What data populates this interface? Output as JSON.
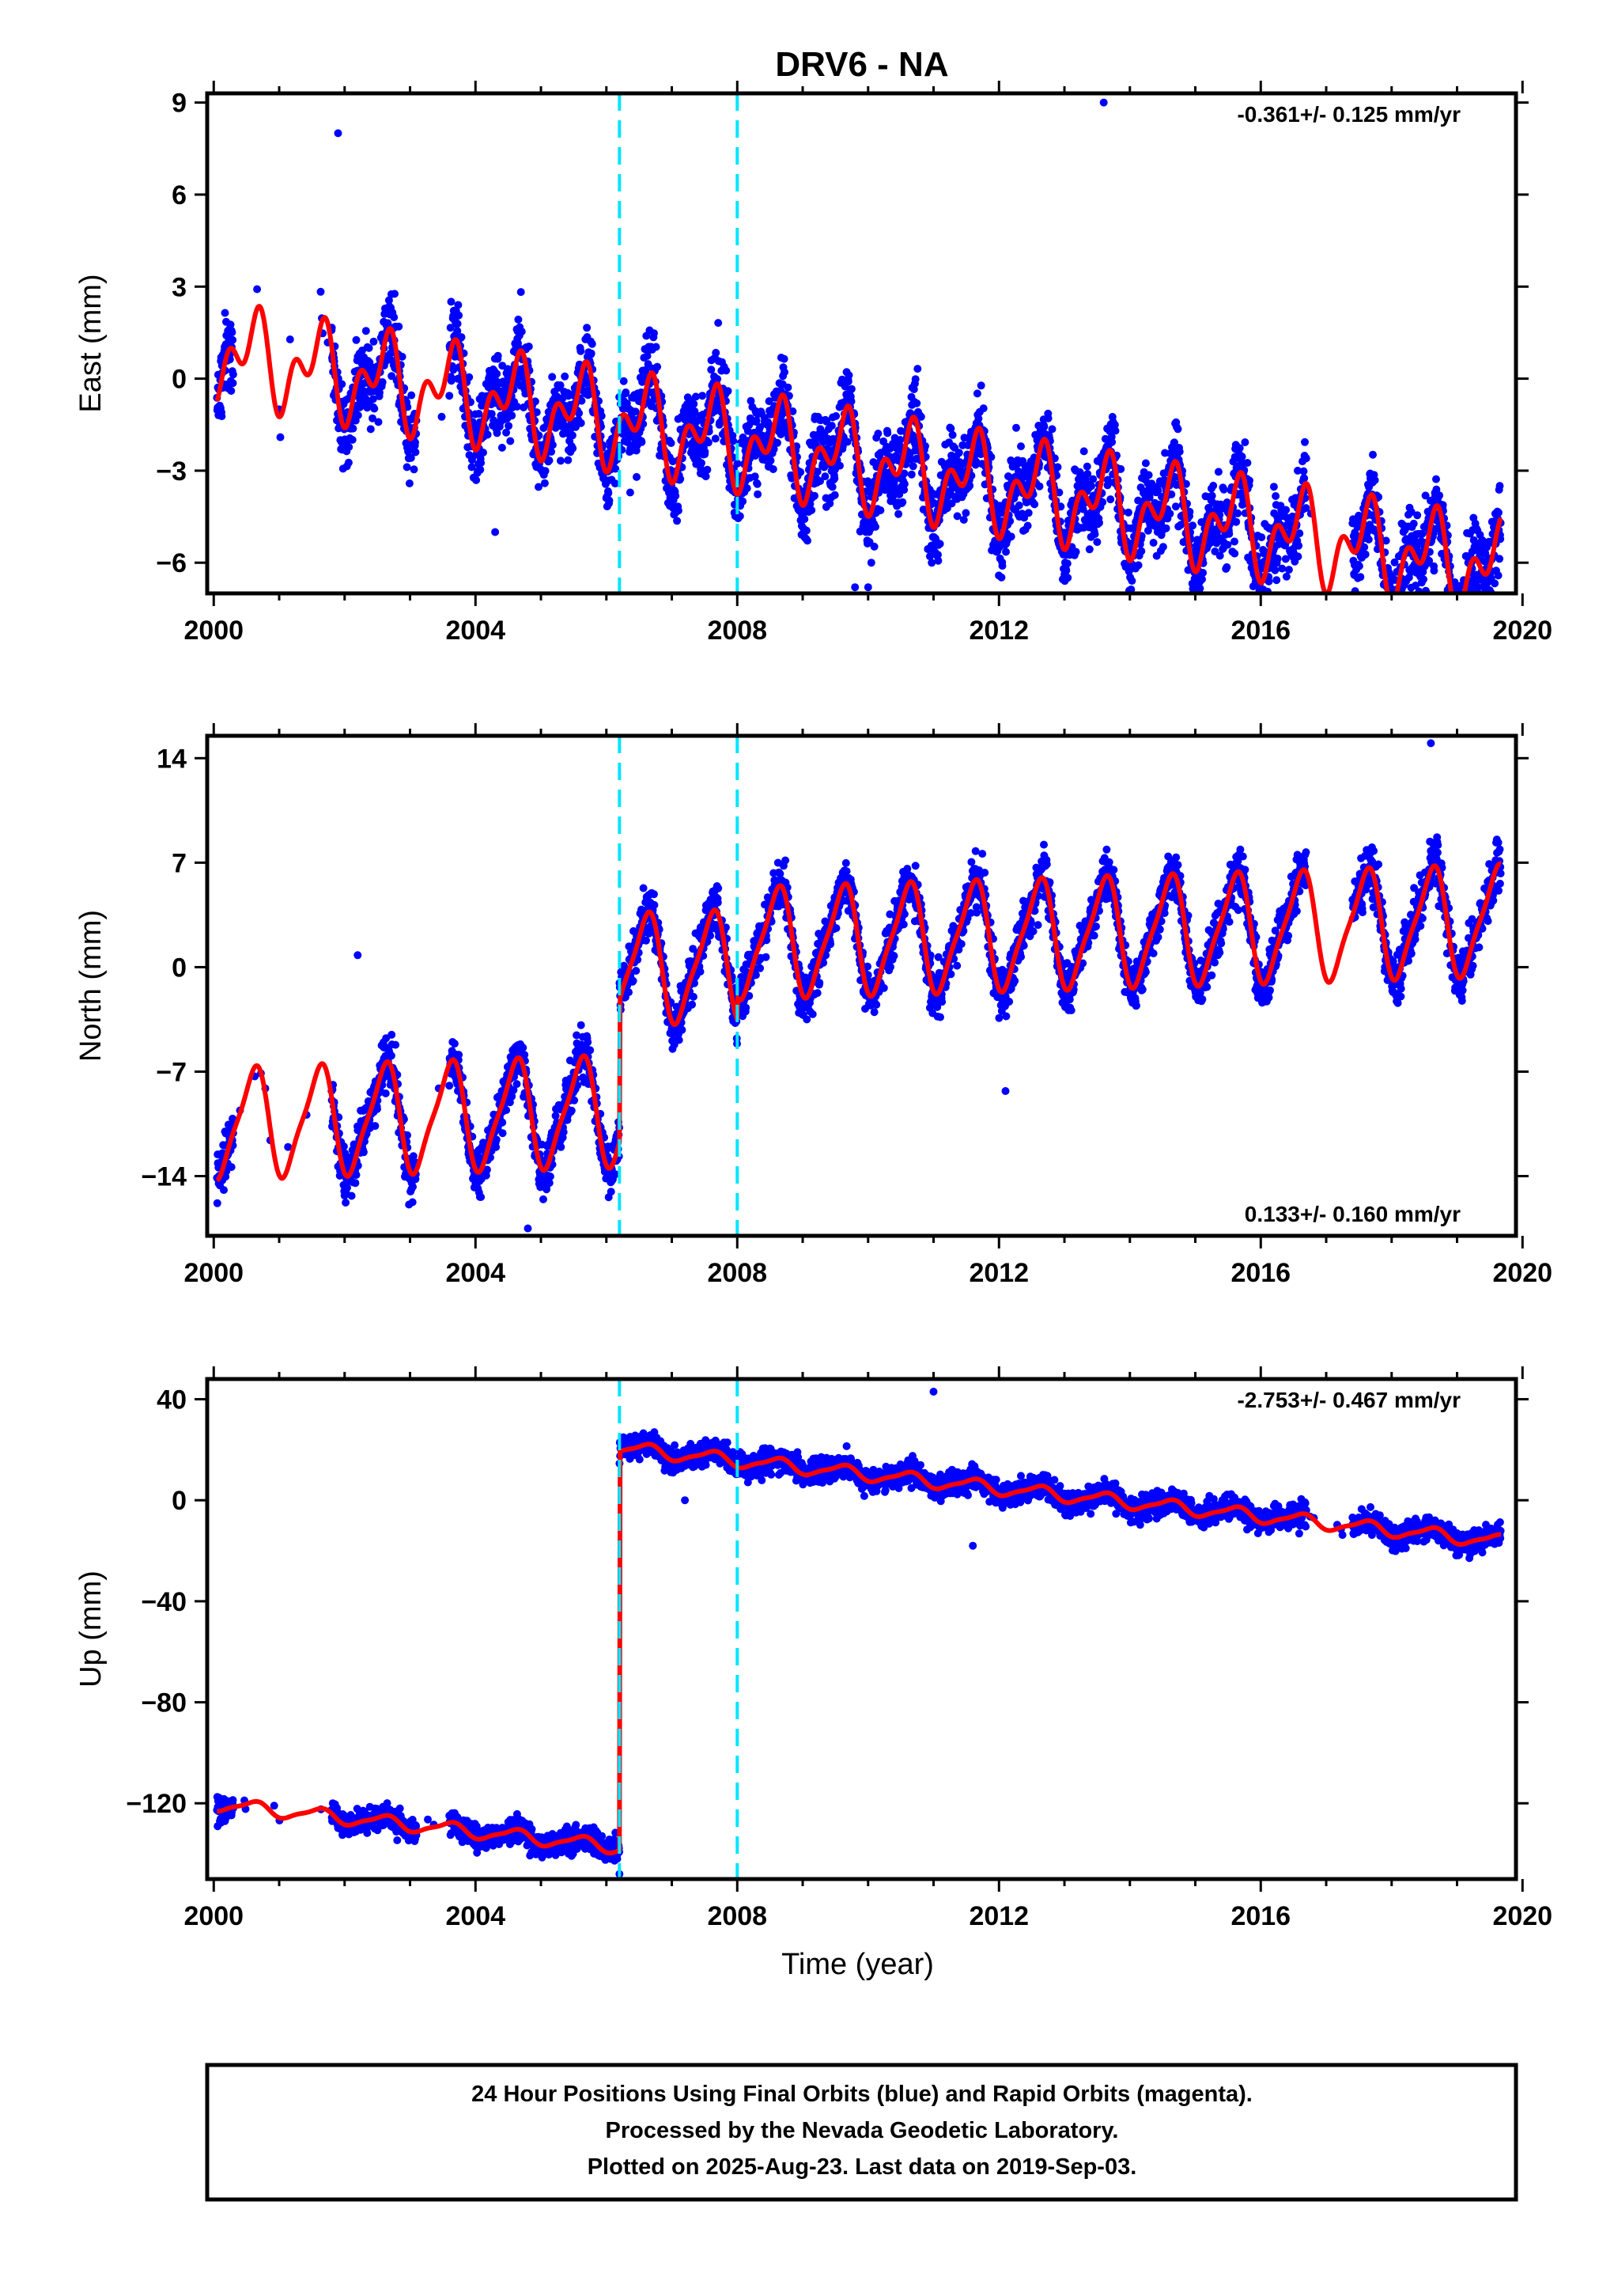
{
  "title": "DRV6 - NA",
  "colors": {
    "points": "#0000ff",
    "model": "#ff0000",
    "offset": "#00e5ff",
    "frame": "#000000"
  },
  "chart_data": [
    {
      "type": "scatter",
      "ylabel": "East (mm)",
      "xlabel": "",
      "xlim": [
        1999.9,
        2019.9
      ],
      "ylim": [
        -7.0,
        9.3
      ],
      "xticks": [
        "2000",
        "2004",
        "2008",
        "2012",
        "2016",
        "2020"
      ],
      "yticks": [
        "−6",
        "−3",
        "0",
        "3",
        "6",
        "9"
      ],
      "ytick_values": [
        -6,
        -3,
        0,
        3,
        6,
        9
      ],
      "rate": "-0.361+/- 0.125 mm/yr",
      "rate_position": "top-right",
      "offsets_x": [
        2006.2,
        2008.0
      ],
      "model": {
        "trend": -0.361,
        "intercept": 0.9,
        "annual_amp": 1.1,
        "semiannual_amp": 0.9,
        "steps": [],
        "noise": 1.1
      },
      "data_gaps": [
        [
          2000.3,
          2001.8
        ],
        [
          2003.1,
          2003.6
        ],
        [
          2016.7,
          2017.4
        ]
      ],
      "outliers": [
        [
          2001.9,
          8.0
        ],
        [
          2013.6,
          9.0
        ],
        [
          2009.8,
          -6.8
        ],
        [
          2010.0,
          -6.8
        ],
        [
          2004.3,
          -5.0
        ],
        [
          2015.6,
          -5.7
        ]
      ]
    },
    {
      "type": "scatter",
      "ylabel": "North (mm)",
      "xlabel": "",
      "xlim": [
        1999.9,
        2019.9
      ],
      "ylim": [
        -18.0,
        15.5
      ],
      "xticks": [
        "2000",
        "2004",
        "2008",
        "2012",
        "2016",
        "2020"
      ],
      "yticks": [
        "−14",
        "−7",
        "0",
        "7",
        "14"
      ],
      "ytick_values": [
        -14,
        -7,
        0,
        7,
        14
      ],
      "rate": "0.133+/- 0.160 mm/yr",
      "rate_position": "bottom-right",
      "offsets_x": [
        2006.2,
        2008.0
      ],
      "model": {
        "trend": 0.133,
        "intercept": -10.5,
        "annual_amp": 3.5,
        "semiannual_amp": 0.8,
        "steps": [
          [
            2006.2,
            9.5
          ],
          [
            2008.0,
            1.5
          ]
        ],
        "noise": 1.4
      },
      "data_gaps": [
        [
          2000.3,
          2001.8
        ],
        [
          2003.1,
          2003.6
        ],
        [
          2016.7,
          2017.4
        ]
      ],
      "outliers": [
        [
          2018.6,
          15.0
        ],
        [
          2012.1,
          -8.3
        ],
        [
          2002.2,
          0.8
        ],
        [
          2004.8,
          -17.5
        ]
      ]
    },
    {
      "type": "scatter",
      "ylabel": "Up (mm)",
      "xlabel": "Time (year)",
      "xlim": [
        1999.9,
        2019.9
      ],
      "ylim": [
        -150,
        48
      ],
      "xticks": [
        "2000",
        "2004",
        "2008",
        "2012",
        "2016",
        "2020"
      ],
      "yticks": [
        "−120",
        "−80",
        "−40",
        "0",
        "40"
      ],
      "ytick_values": [
        -120,
        -80,
        -40,
        0,
        40
      ],
      "rate": "-2.753+/- 0.467 mm/yr",
      "rate_position": "top-right",
      "offsets_x": [
        2006.2,
        2008.0
      ],
      "model": {
        "trend": -2.753,
        "intercept": -120.0,
        "annual_amp": 2.5,
        "semiannual_amp": 0.7,
        "steps": [
          [
            2006.2,
            158.0
          ]
        ],
        "noise": 4.0
      },
      "data_gaps": [
        [
          2000.3,
          2001.8
        ],
        [
          2003.1,
          2003.6
        ],
        [
          2016.7,
          2017.4
        ]
      ],
      "outliers": [
        [
          2011.0,
          43.0
        ],
        [
          2011.6,
          -18.0
        ],
        [
          2006.2,
          -148.0
        ],
        [
          2007.2,
          0.0
        ]
      ]
    }
  ],
  "footer": {
    "line1": "24 Hour Positions Using Final Orbits (blue) and Rapid Orbits (magenta).",
    "line2": "Processed by the Nevada Geodetic Laboratory.",
    "line3": "Plotted on 2025-Aug-23. Last data on 2019-Sep-03."
  }
}
